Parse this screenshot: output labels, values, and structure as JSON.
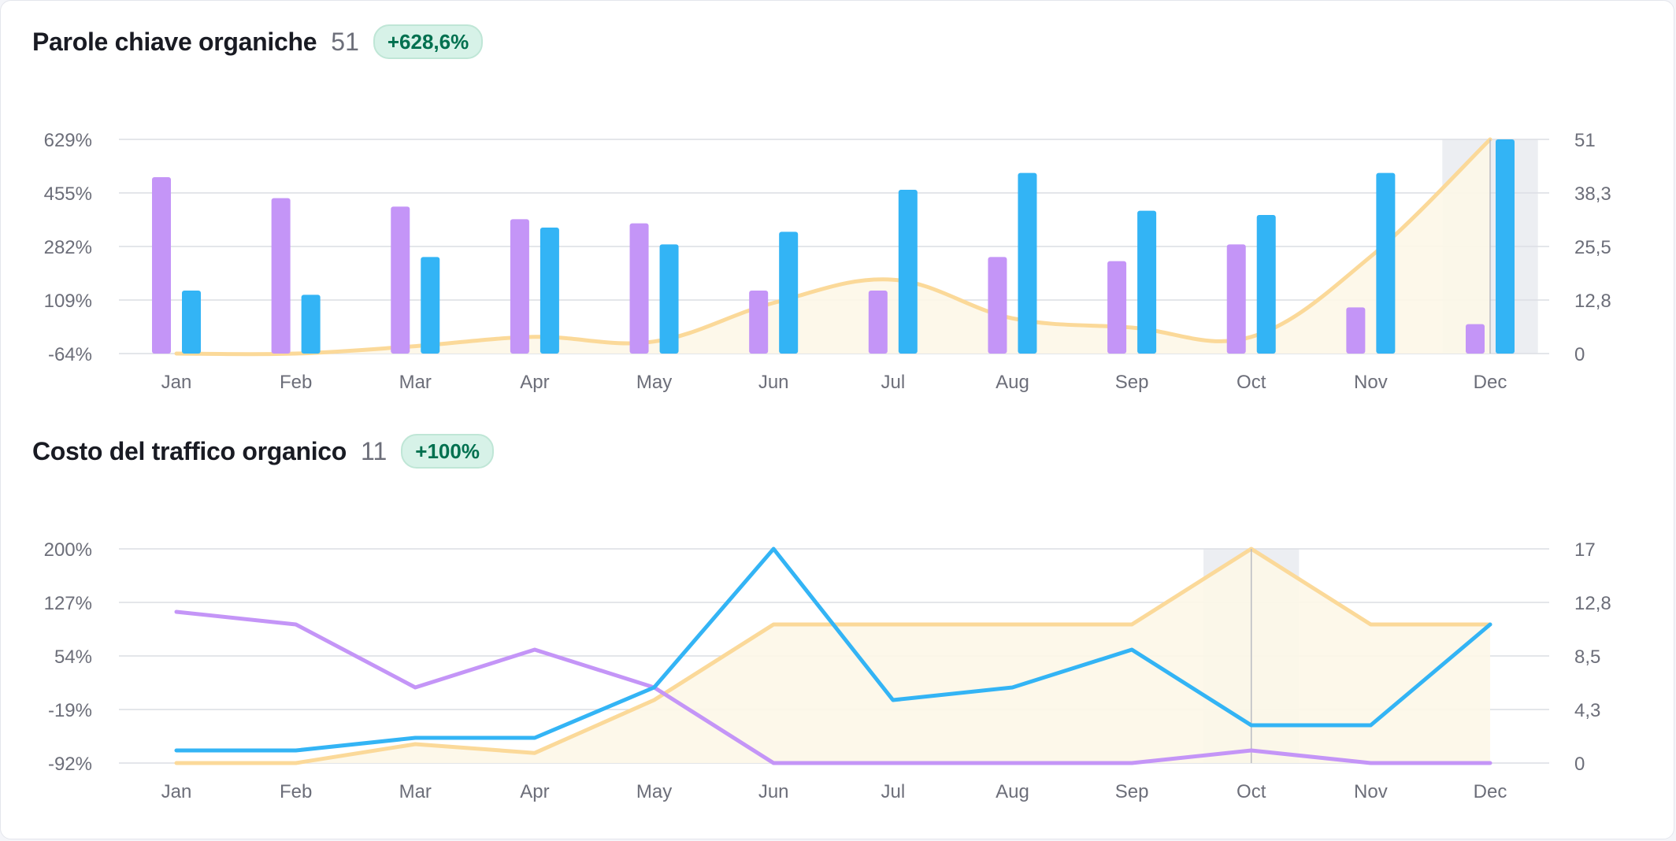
{
  "colors": {
    "competitor_purple": "#c495f7",
    "domain_blue": "#33b4f5",
    "trend_orange": "#fbd999",
    "trend_fill": "#fdf7e8",
    "grid": "#dcdee4",
    "highlight": "#eceef2"
  },
  "chart_data": [
    {
      "type": "bar",
      "title": "Parole chiave organiche",
      "value": "51",
      "change": "+628,6%",
      "categories": [
        "Jan",
        "Feb",
        "Mar",
        "Apr",
        "May",
        "Jun",
        "Jul",
        "Aug",
        "Sep",
        "Oct",
        "Nov",
        "Dec"
      ],
      "left_ticks": [
        "629%",
        "455%",
        "282%",
        "109%",
        "-64%"
      ],
      "right_ticks": [
        "51",
        "38,3",
        "25,5",
        "12,8",
        "0"
      ],
      "ylim_right": [
        0,
        51
      ],
      "ylim_left": [
        -64,
        629
      ],
      "grid": true,
      "highlighted_category": "Dec",
      "series": [
        {
          "color": "#c495f7",
          "axis": "right",
          "values": [
            42,
            37,
            35,
            32,
            31,
            15,
            15,
            23,
            22,
            26,
            11,
            7
          ]
        },
        {
          "color": "#33b4f5",
          "axis": "right",
          "values": [
            15,
            14,
            23,
            30,
            26,
            29,
            39,
            43,
            34,
            33,
            43,
            51
          ]
        },
        {
          "type": "area",
          "color": "#fbd999",
          "axis": "left",
          "values": [
            -64,
            -64,
            -40,
            -10,
            -25,
            100,
            175,
            50,
            20,
            -10,
            250,
            629
          ]
        }
      ]
    },
    {
      "type": "line",
      "title": "Costo del traffico organico",
      "value": "11",
      "change": "+100%",
      "categories": [
        "Jan",
        "Feb",
        "Mar",
        "Apr",
        "May",
        "Jun",
        "Jul",
        "Aug",
        "Sep",
        "Oct",
        "Nov",
        "Dec"
      ],
      "left_ticks": [
        "200%",
        "127%",
        "54%",
        "-19%",
        "-92%"
      ],
      "right_ticks": [
        "17",
        "12,8",
        "8,5",
        "4,3",
        "0"
      ],
      "ylim_right": [
        0,
        17
      ],
      "ylim_left": [
        -92,
        200
      ],
      "grid": true,
      "highlighted_category": "Oct",
      "series": [
        {
          "color": "#c495f7",
          "axis": "right",
          "values": [
            12,
            11,
            6,
            9,
            6,
            0,
            0,
            0,
            0,
            1,
            0,
            0
          ]
        },
        {
          "color": "#33b4f5",
          "axis": "right",
          "values": [
            1,
            1,
            2,
            2,
            6,
            17,
            5,
            6,
            9,
            3,
            3,
            11
          ]
        },
        {
          "type": "area",
          "color": "#fbd999",
          "axis": "right",
          "values": [
            0,
            0,
            1.5,
            0.8,
            5,
            11,
            11,
            11,
            11,
            17,
            11,
            11
          ]
        }
      ]
    }
  ]
}
